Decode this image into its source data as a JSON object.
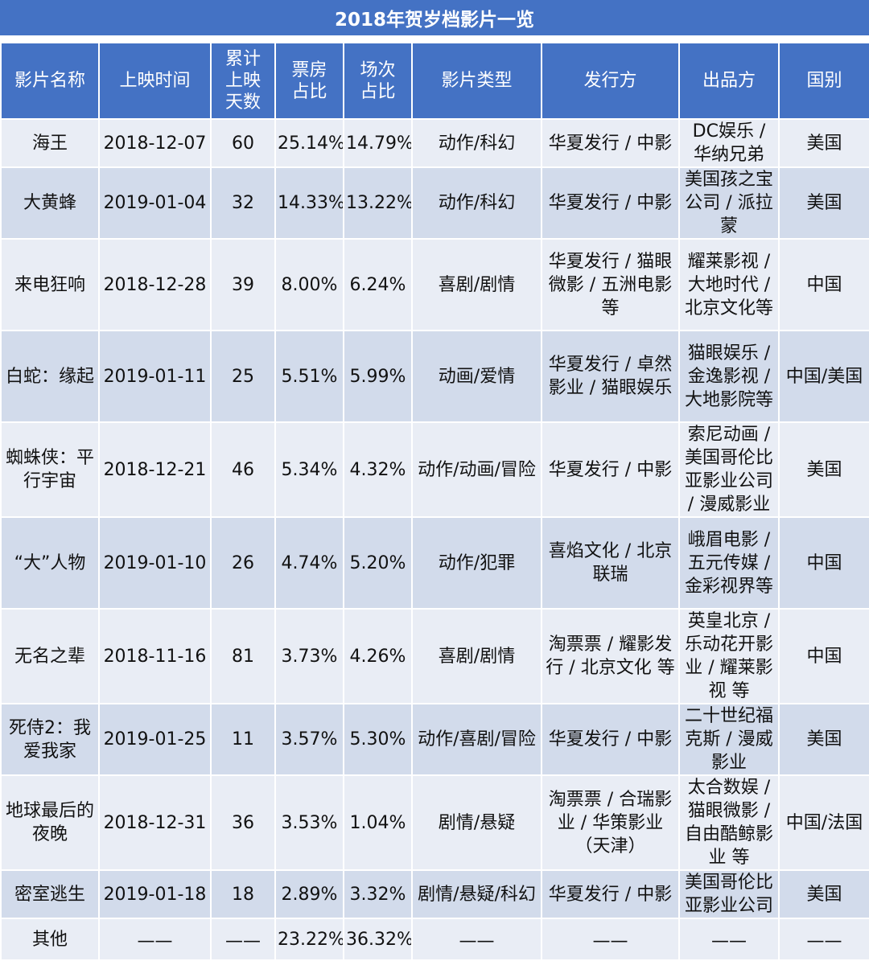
{
  "title": "2018年贺岁档影片一览",
  "colors": {
    "header_bg": "#4472c4",
    "row_odd": "#e9edf5",
    "row_even": "#d2dbeb"
  },
  "columns": [
    "影片名称",
    "上映时间",
    "累计上映天数",
    "票房占比",
    "场次占比",
    "影片类型",
    "发行方",
    "出品方",
    "国别"
  ],
  "rows": [
    {
      "name": "海王",
      "date": "2018-12-07",
      "days": "60",
      "box": "25.14%",
      "screen": "14.79%",
      "genre": "动作/科幻",
      "distributor": "华夏发行 / 中影",
      "producer": "DC娱乐 / 华纳兄弟",
      "country": "美国"
    },
    {
      "name": "大黄蜂",
      "date": "2019-01-04",
      "days": "32",
      "box": "14.33%",
      "screen": "13.22%",
      "genre": "动作/科幻",
      "distributor": "华夏发行 / 中影",
      "producer": "美国孩之宝公司 / 派拉蒙",
      "country": "美国"
    },
    {
      "name": "来电狂响",
      "date": "2018-12-28",
      "days": "39",
      "box": "8.00%",
      "screen": "6.24%",
      "genre": "喜剧/剧情",
      "distributor": "华夏发行 / 猫眼微影 / 五洲电影等",
      "producer": "耀莱影视 / 大地时代 / 北京文化等",
      "country": "中国"
    },
    {
      "name": "白蛇：缘起",
      "date": "2019-01-11",
      "days": "25",
      "box": "5.51%",
      "screen": "5.99%",
      "genre": "动画/爱情",
      "distributor": "华夏发行 / 卓然影业 / 猫眼娱乐",
      "producer": "猫眼娱乐 / 金逸影视 / 大地影院等",
      "country": "中国/美国"
    },
    {
      "name": "蜘蛛侠：平行宇宙",
      "date": "2018-12-21",
      "days": "46",
      "box": "5.34%",
      "screen": "4.32%",
      "genre": "动作/动画/冒险",
      "distributor": "华夏发行 / 中影",
      "producer": "索尼动画 / 美国哥伦比亚影业公司 / 漫威影业",
      "country": "美国"
    },
    {
      "name": "“大”人物",
      "date": "2019-01-10",
      "days": "26",
      "box": "4.74%",
      "screen": "5.20%",
      "genre": "动作/犯罪",
      "distributor": "喜焰文化 / 北京联瑞",
      "producer": "峨眉电影 / 五元传媒 / 金彩视界等",
      "country": "中国"
    },
    {
      "name": "无名之辈",
      "date": "2018-11-16",
      "days": "81",
      "box": "3.73%",
      "screen": "4.26%",
      "genre": "喜剧/剧情",
      "distributor": "淘票票 / 耀影发行 / 北京文化 等",
      "producer": "英皇北京 / 乐动花开影业 / 耀莱影视 等",
      "country": "中国"
    },
    {
      "name": "死侍2：我爱我家",
      "date": "2019-01-25",
      "days": "11",
      "box": "3.57%",
      "screen": "5.30%",
      "genre": "动作/喜剧/冒险",
      "distributor": "华夏发行 / 中影",
      "producer": "二十世纪福克斯 / 漫威影业",
      "country": "美国"
    },
    {
      "name": "地球最后的夜晚",
      "date": "2018-12-31",
      "days": "36",
      "box": "3.53%",
      "screen": "1.04%",
      "genre": "剧情/悬疑",
      "distributor": "淘票票 / 合瑞影业 / 华策影业（天津）",
      "producer": "太合数娱 / 猫眼微影 / 自由酷鲸影业 等",
      "country": "中国/法国"
    },
    {
      "name": "密室逃生",
      "date": "2019-01-18",
      "days": "18",
      "box": "2.89%",
      "screen": "3.32%",
      "genre": "剧情/悬疑/科幻",
      "distributor": "华夏发行 / 中影",
      "producer": "美国哥伦比亚影业公司",
      "country": "美国"
    }
  ],
  "other": {
    "name": "其他",
    "date": "——",
    "days": "——",
    "box": "23.22%",
    "screen": "36.32%",
    "genre": "——",
    "distributor": "——",
    "producer": "——",
    "country": "——"
  }
}
